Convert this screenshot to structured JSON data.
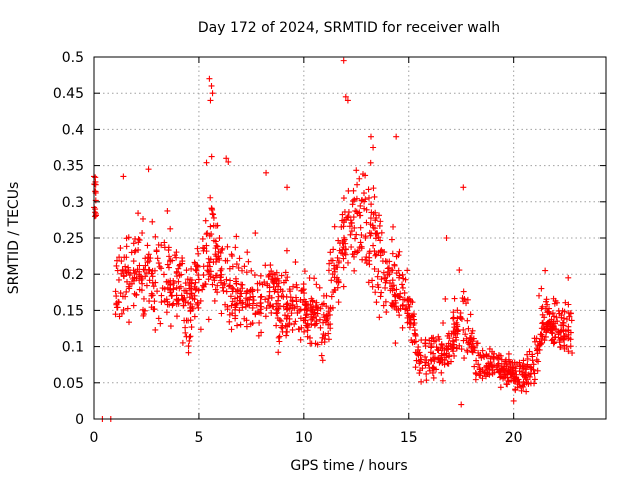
{
  "chart_data": {
    "type": "scatter",
    "title": "Day 172 of 2024, SRMTID for receiver walh",
    "xlabel": "GPS time / hours",
    "ylabel": "SRMTID / TECUs",
    "xlim": [
      0,
      24.4
    ],
    "ylim": [
      0,
      0.5
    ],
    "xticks": [
      0,
      5,
      10,
      15,
      20
    ],
    "yticks": [
      0,
      0.05,
      0.1,
      0.15,
      0.2,
      0.25,
      0.3,
      0.35,
      0.4,
      0.45,
      0.5
    ],
    "xtick_labels": [
      "0",
      "5",
      "10",
      "15",
      "20"
    ],
    "ytick_labels": [
      "0",
      "0.05",
      "0.1",
      "0.15",
      "0.2",
      "0.25",
      "0.3",
      "0.35",
      "0.4",
      "0.45",
      "0.5"
    ],
    "grid": true,
    "marker": "+",
    "color": "#ff0000",
    "series": [
      {
        "name": "SRMTID",
        "profile_hours": [
          0.0,
          0.1,
          0.8,
          1.0,
          1.5,
          2.0,
          2.5,
          3.0,
          3.5,
          4.0,
          4.5,
          5.0,
          5.5,
          6.0,
          6.5,
          7.0,
          7.5,
          8.0,
          8.5,
          9.0,
          9.5,
          10.0,
          10.5,
          11.0,
          11.5,
          12.0,
          12.5,
          13.0,
          13.5,
          14.0,
          14.5,
          15.0,
          15.5,
          16.0,
          16.5,
          17.0,
          17.5,
          18.0,
          18.5,
          19.0,
          19.5,
          20.0,
          20.5,
          21.0,
          21.5,
          22.0,
          22.5,
          22.8
        ],
        "profile_median": [
          0.31,
          0.3,
          0.0,
          0.16,
          0.2,
          0.2,
          0.19,
          0.2,
          0.19,
          0.18,
          0.15,
          0.2,
          0.24,
          0.22,
          0.18,
          0.17,
          0.16,
          0.17,
          0.17,
          0.16,
          0.15,
          0.15,
          0.14,
          0.13,
          0.2,
          0.26,
          0.27,
          0.27,
          0.22,
          0.2,
          0.18,
          0.16,
          0.08,
          0.08,
          0.09,
          0.1,
          0.14,
          0.1,
          0.07,
          0.07,
          0.07,
          0.06,
          0.06,
          0.08,
          0.13,
          0.13,
          0.12,
          0.13
        ],
        "profile_spread": [
          0.02,
          0.02,
          0.0,
          0.05,
          0.06,
          0.06,
          0.06,
          0.06,
          0.05,
          0.06,
          0.05,
          0.06,
          0.08,
          0.06,
          0.06,
          0.05,
          0.05,
          0.05,
          0.05,
          0.05,
          0.05,
          0.04,
          0.04,
          0.04,
          0.06,
          0.07,
          0.07,
          0.07,
          0.07,
          0.06,
          0.05,
          0.05,
          0.03,
          0.03,
          0.03,
          0.03,
          0.04,
          0.03,
          0.02,
          0.02,
          0.02,
          0.02,
          0.02,
          0.03,
          0.03,
          0.03,
          0.03,
          0.03
        ],
        "notable_points": [
          {
            "x": 0.0,
            "y": 0.335
          },
          {
            "x": 0.05,
            "y": 0.28
          },
          {
            "x": 0.4,
            "y": 0.0
          },
          {
            "x": 0.8,
            "y": 0.0
          },
          {
            "x": 5.5,
            "y": 0.47
          },
          {
            "x": 5.6,
            "y": 0.46
          },
          {
            "x": 5.65,
            "y": 0.45
          },
          {
            "x": 5.55,
            "y": 0.44
          },
          {
            "x": 8.2,
            "y": 0.34
          },
          {
            "x": 9.2,
            "y": 0.32
          },
          {
            "x": 11.9,
            "y": 0.495
          },
          {
            "x": 12.0,
            "y": 0.445
          },
          {
            "x": 12.1,
            "y": 0.44
          },
          {
            "x": 14.4,
            "y": 0.39
          },
          {
            "x": 17.6,
            "y": 0.32
          },
          {
            "x": 17.5,
            "y": 0.02
          },
          {
            "x": 20.0,
            "y": 0.025
          },
          {
            "x": 21.5,
            "y": 0.205
          },
          {
            "x": 22.6,
            "y": 0.195
          },
          {
            "x": 13.2,
            "y": 0.39
          },
          {
            "x": 13.3,
            "y": 0.375
          },
          {
            "x": 2.6,
            "y": 0.345
          },
          {
            "x": 1.4,
            "y": 0.335
          },
          {
            "x": 6.3,
            "y": 0.36
          },
          {
            "x": 6.4,
            "y": 0.355
          },
          {
            "x": 16.8,
            "y": 0.25
          }
        ]
      }
    ]
  }
}
